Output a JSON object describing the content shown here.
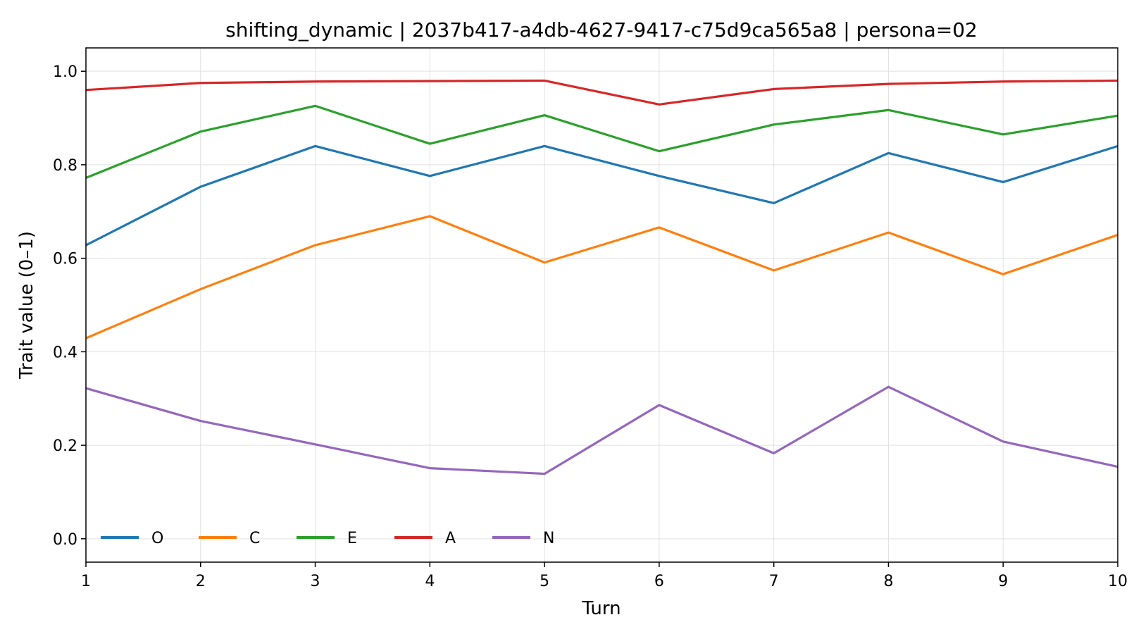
{
  "chart_data": {
    "type": "line",
    "title": "shifting_dynamic | 2037b417-a4db-4627-9417-c75d9ca565a8 | persona=02",
    "xlabel": "Turn",
    "ylabel": "Trait value (0–1)",
    "x": [
      1,
      2,
      3,
      4,
      5,
      6,
      7,
      8,
      9,
      10
    ],
    "xlim": [
      1,
      10
    ],
    "ylim": [
      -0.05,
      1.05
    ],
    "xticks": [
      "1",
      "2",
      "3",
      "4",
      "5",
      "6",
      "7",
      "8",
      "9",
      "10"
    ],
    "yticks": [
      "0.0",
      "0.2",
      "0.4",
      "0.6",
      "0.8",
      "1.0"
    ],
    "grid": true,
    "legend_position": "lower-left",
    "series": [
      {
        "name": "O",
        "color": "#1f77b4",
        "values": [
          0.628,
          0.753,
          0.84,
          0.776,
          0.84,
          0.776,
          0.718,
          0.825,
          0.763,
          0.84
        ]
      },
      {
        "name": "C",
        "color": "#ff7f0e",
        "values": [
          0.429,
          0.534,
          0.628,
          0.69,
          0.591,
          0.666,
          0.574,
          0.655,
          0.566,
          0.65
        ]
      },
      {
        "name": "E",
        "color": "#2ca02c",
        "values": [
          0.772,
          0.871,
          0.926,
          0.845,
          0.906,
          0.829,
          0.886,
          0.917,
          0.865,
          0.905
        ]
      },
      {
        "name": "A",
        "color": "#d62728",
        "values": [
          0.96,
          0.975,
          0.978,
          0.979,
          0.98,
          0.929,
          0.962,
          0.973,
          0.978,
          0.98
        ]
      },
      {
        "name": "N",
        "color": "#9467bd",
        "values": [
          0.322,
          0.252,
          0.202,
          0.151,
          0.139,
          0.286,
          0.183,
          0.325,
          0.208,
          0.154
        ]
      }
    ]
  }
}
